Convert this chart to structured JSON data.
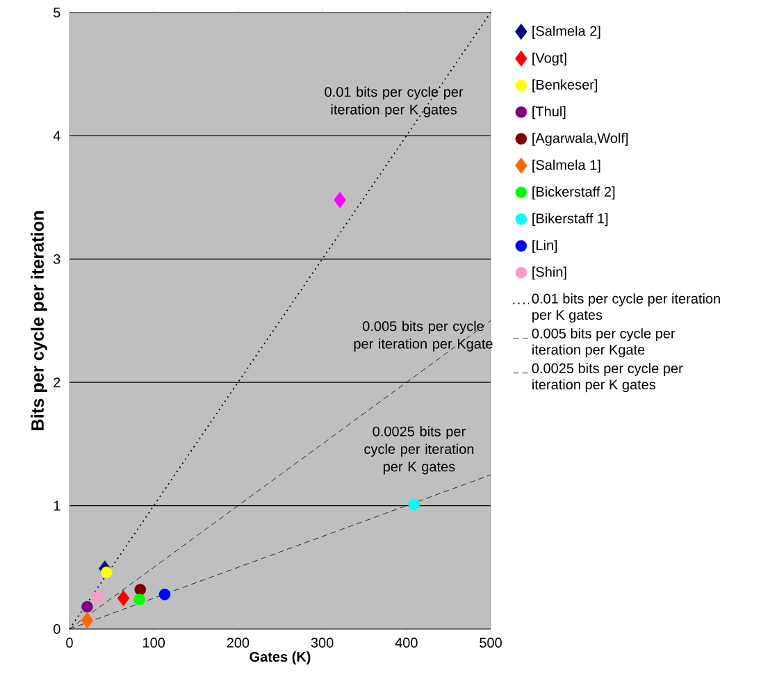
{
  "chart_data": {
    "type": "scatter",
    "xlabel": "Gates (K)",
    "ylabel": "Bits per cycle  per iteration",
    "xlim": [
      0,
      500
    ],
    "ylim": [
      0,
      5
    ],
    "xticks": [
      0,
      100,
      200,
      300,
      400,
      500
    ],
    "yticks": [
      0,
      1,
      2,
      3,
      4,
      5
    ],
    "grid": "y",
    "legend": "right",
    "series": [
      {
        "color": "#ff00ff",
        "marker": "diamond",
        "x": [
          321
        ],
        "values": [
          3.48
        ]
      },
      {
        "name": "[Salmela 2]",
        "color": "#000080",
        "marker": "diamond",
        "x": [
          42
        ],
        "values": [
          0.49
        ]
      },
      {
        "name": "[Vogt]",
        "color": "#ff0000",
        "marker": "diamond",
        "x": [
          64
        ],
        "values": [
          0.25
        ]
      },
      {
        "name": "[Benkeser]",
        "color": "#ffff00",
        "marker": "circle",
        "x": [
          44
        ],
        "values": [
          0.46
        ]
      },
      {
        "name": "[Thul]",
        "color": "#800080",
        "marker": "circle",
        "x": [
          21
        ],
        "values": [
          0.18
        ]
      },
      {
        "name": "[Agarwala,Wolf]",
        "color": "#800000",
        "marker": "circle",
        "x": [
          84
        ],
        "values": [
          0.32
        ]
      },
      {
        "name": "[Salmela 1]",
        "color": "#ff6600",
        "marker": "diamond",
        "x": [
          21
        ],
        "values": [
          0.07
        ]
      },
      {
        "name": "[Bickerstaff 2]",
        "color": "#00ff00",
        "marker": "circle",
        "x": [
          83
        ],
        "values": [
          0.24
        ]
      },
      {
        "name": "[Bikerstaff 1]",
        "color": "#00ffff",
        "marker": "circle",
        "x": [
          409
        ],
        "values": [
          1.01
        ]
      },
      {
        "name": "[Lin]",
        "color": "#0000ff",
        "marker": "circle",
        "x": [
          113
        ],
        "values": [
          0.28
        ]
      },
      {
        "name": "[Shin]",
        "color": "#ff99cc",
        "marker": "circle",
        "x": [
          33
        ],
        "values": [
          0.26
        ]
      },
      {
        "name": "0.01 bits per cycle per iteration per K gates",
        "type": "line",
        "color": "#000000",
        "line_style": "dotted",
        "x": [
          0,
          500
        ],
        "values": [
          0,
          5
        ]
      },
      {
        "name": "0.005 bits per cycle per iteration per Kgate",
        "type": "line",
        "color": "#000000",
        "line_style": "dashed",
        "x": [
          0,
          500
        ],
        "values": [
          0,
          2.5
        ]
      },
      {
        "name": "0.0025 bits per cycle per iteration per K gates",
        "type": "line",
        "color": "#000000",
        "line_style": "dashed",
        "x": [
          0,
          500
        ],
        "values": [
          0,
          1.25
        ]
      }
    ],
    "annotations": [
      "0.01 bits per cycle per iteration per K gates",
      "0.005 bits per cycle per iteration per Kgate",
      "0.0025 bits per cycle per iteration per K gates"
    ]
  }
}
